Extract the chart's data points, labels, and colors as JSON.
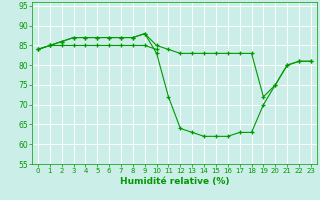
{
  "xlabel": "Humidité relative (%)",
  "bg_color": "#cceee8",
  "grid_color": "#ffffff",
  "line_color": "#009900",
  "marker": "+",
  "xlim": [
    -0.5,
    23.5
  ],
  "ylim": [
    55,
    96
  ],
  "yticks": [
    55,
    60,
    65,
    70,
    75,
    80,
    85,
    90,
    95
  ],
  "xticks": [
    0,
    1,
    2,
    3,
    4,
    5,
    6,
    7,
    8,
    9,
    10,
    11,
    12,
    13,
    14,
    15,
    16,
    17,
    18,
    19,
    20,
    21,
    22,
    23
  ],
  "line1_x": [
    0,
    1,
    2,
    3,
    4,
    5,
    6,
    7,
    8,
    9,
    10,
    11,
    12,
    13,
    14,
    15,
    16,
    17,
    18,
    19,
    20,
    21,
    22,
    23
  ],
  "line1_y": [
    84,
    85,
    86,
    87,
    87,
    87,
    87,
    87,
    87,
    88,
    83,
    72,
    64,
    63,
    62,
    62,
    62,
    63,
    63,
    70,
    75,
    80,
    81,
    81
  ],
  "line2_x": [
    0,
    1,
    2,
    3,
    4,
    5,
    6,
    7,
    8,
    9,
    10,
    11,
    12,
    13,
    14,
    15,
    16,
    17,
    18,
    19,
    20,
    21,
    22,
    23
  ],
  "line2_y": [
    84,
    85,
    86,
    87,
    87,
    87,
    87,
    87,
    87,
    88,
    85,
    84,
    83,
    83,
    83,
    83,
    83,
    83,
    83,
    72,
    75,
    80,
    81,
    81
  ],
  "line3_x": [
    0,
    1,
    2,
    3,
    4,
    5,
    6,
    7,
    8,
    9,
    10
  ],
  "line3_y": [
    84,
    85,
    85,
    85,
    85,
    85,
    85,
    85,
    85,
    85,
    84
  ]
}
